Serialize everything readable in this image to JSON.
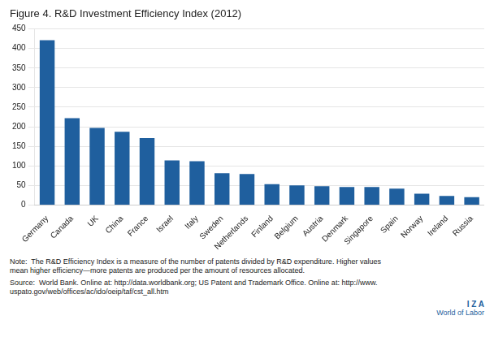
{
  "chart_data": {
    "type": "bar",
    "title": "Figure 4. R&D Investment Efficiency Index (2012)",
    "categories": [
      "Germany",
      "Canada",
      "UK",
      "China",
      "France",
      "Israel",
      "Italy",
      "Sweden",
      "Netherlands",
      "Finland",
      "Belgium",
      "Austria",
      "Denmark",
      "Singapore",
      "Spain",
      "Norway",
      "Ireland",
      "Russia"
    ],
    "values": [
      421,
      222,
      197,
      187,
      171,
      114,
      112,
      81,
      79,
      53,
      50,
      48,
      46,
      46,
      42,
      29,
      23,
      20
    ],
    "color": "#1F5F9E",
    "ylim": [
      0,
      450
    ],
    "yticks": [
      0,
      50,
      100,
      150,
      200,
      250,
      300,
      350,
      400,
      450
    ],
    "grid": true,
    "annotations": [
      "Note:  The R&D Efficiency Index is a measure of the number of patents divided by R&D expenditure. Higher values\nmean higher efficiency—more patents are produced per the amount of resources allocated.",
      "Source:  World Bank. Online at: http://data.worldbank.org; US Patent and Trademark Office. Online at: http://www.\nuspato.gov/web/offices/ac/ido/oeip/taf/cst_all.htm",
      "I Z A",
      "World of Labor"
    ]
  }
}
